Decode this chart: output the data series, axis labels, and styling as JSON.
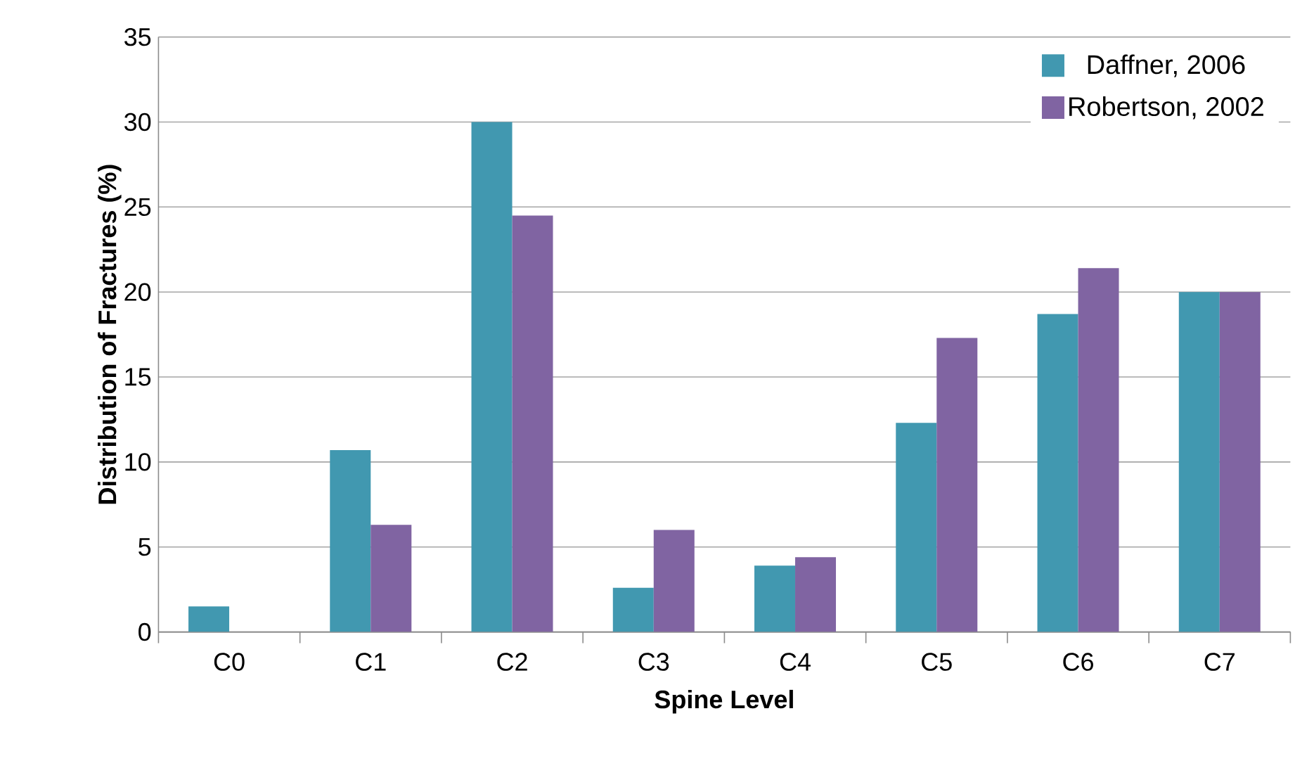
{
  "chart_data": {
    "type": "bar",
    "xlabel": "Spine Level",
    "ylabel": "Distribution of Fractures (%)",
    "categories": [
      "C0",
      "C1",
      "C2",
      "C3",
      "C4",
      "C5",
      "C6",
      "C7"
    ],
    "series": [
      {
        "name": "Daffner, 2006",
        "color": "#4198b0",
        "values": [
          1.5,
          10.7,
          30,
          2.6,
          3.9,
          12.3,
          18.7,
          20
        ]
      },
      {
        "name": "Robertson, 2002",
        "color": "#8064a2",
        "values": [
          0,
          6.3,
          24.5,
          6.0,
          4.4,
          17.3,
          21.4,
          20
        ]
      }
    ],
    "ylim": [
      0,
      35
    ],
    "yticks": [
      0,
      5,
      10,
      15,
      20,
      25,
      30,
      35
    ],
    "grid": "y",
    "legend": "top right"
  }
}
